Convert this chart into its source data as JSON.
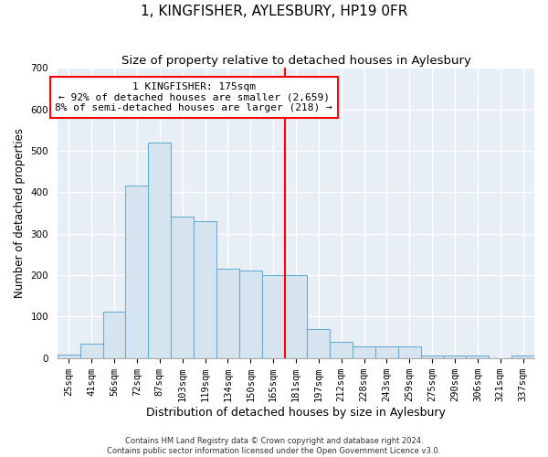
{
  "title": "1, KINGFISHER, AYLESBURY, HP19 0FR",
  "subtitle": "Size of property relative to detached houses in Aylesbury",
  "xlabel": "Distribution of detached houses by size in Aylesbury",
  "ylabel": "Number of detached properties",
  "categories": [
    "25sqm",
    "41sqm",
    "56sqm",
    "72sqm",
    "87sqm",
    "103sqm",
    "119sqm",
    "134sqm",
    "150sqm",
    "165sqm",
    "181sqm",
    "197sqm",
    "212sqm",
    "228sqm",
    "243sqm",
    "259sqm",
    "275sqm",
    "290sqm",
    "306sqm",
    "321sqm",
    "337sqm"
  ],
  "values": [
    8,
    35,
    112,
    415,
    520,
    340,
    330,
    215,
    210,
    200,
    200,
    70,
    40,
    28,
    28,
    28,
    5,
    5,
    5,
    0,
    5
  ],
  "bar_color": "#d6e4f0",
  "bar_edge_color": "#6aaed6",
  "red_line_index": 10,
  "annotation_line1": "1 KINGFISHER: 175sqm",
  "annotation_line2": "← 92% of detached houses are smaller (2,659)",
  "annotation_line3": "8% of semi-detached houses are larger (218) →",
  "ylim": [
    0,
    700
  ],
  "yticks": [
    0,
    100,
    200,
    300,
    400,
    500,
    600,
    700
  ],
  "footer1": "Contains HM Land Registry data © Crown copyright and database right 2024.",
  "footer2": "Contains public sector information licensed under the Open Government Licence v3.0.",
  "plot_background": "#e8eef5",
  "grid_color": "#ffffff",
  "title_fontsize": 11,
  "subtitle_fontsize": 9.5,
  "xlabel_fontsize": 9,
  "ylabel_fontsize": 8.5,
  "tick_fontsize": 7.5,
  "annotation_fontsize": 8,
  "footer_fontsize": 6
}
